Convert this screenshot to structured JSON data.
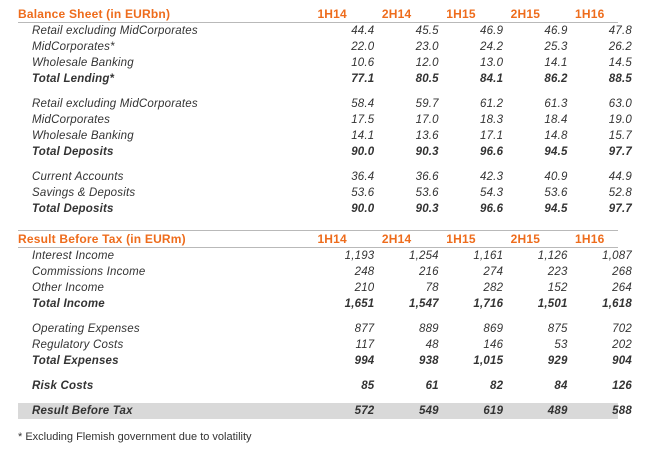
{
  "balance_sheet": {
    "title": "Balance Sheet (in EURbn)",
    "periods": [
      "1H14",
      "2H14",
      "1H15",
      "2H15",
      "1H16"
    ],
    "lending": [
      {
        "label": "Retail excluding MidCorporates",
        "values": [
          "44.4",
          "45.5",
          "46.9",
          "46.9",
          "47.8"
        ]
      },
      {
        "label": "MidCorporates*",
        "values": [
          "22.0",
          "23.0",
          "24.2",
          "25.3",
          "26.2"
        ]
      },
      {
        "label": "Wholesale Banking",
        "values": [
          "10.6",
          "12.0",
          "13.0",
          "14.1",
          "14.5"
        ]
      }
    ],
    "total_lending": {
      "label": "Total Lending*",
      "values": [
        "77.1",
        "80.5",
        "84.1",
        "86.2",
        "88.5"
      ]
    },
    "deposits_by_segment": [
      {
        "label": "Retail excluding MidCorporates",
        "values": [
          "58.4",
          "59.7",
          "61.2",
          "61.3",
          "63.0"
        ]
      },
      {
        "label": "MidCorporates",
        "values": [
          "17.5",
          "17.0",
          "18.3",
          "18.4",
          "19.0"
        ]
      },
      {
        "label": "Wholesale Banking",
        "values": [
          "14.1",
          "13.6",
          "17.1",
          "14.8",
          "15.7"
        ]
      }
    ],
    "total_deposits_segment": {
      "label": "Total Deposits",
      "values": [
        "90.0",
        "90.3",
        "96.6",
        "94.5",
        "97.7"
      ]
    },
    "deposits_by_type": [
      {
        "label": "Current Accounts",
        "values": [
          "36.4",
          "36.6",
          "42.3",
          "40.9",
          "44.9"
        ]
      },
      {
        "label": "Savings & Deposits",
        "values": [
          "53.6",
          "53.6",
          "54.3",
          "53.6",
          "52.8"
        ]
      }
    ],
    "total_deposits_type": {
      "label": "Total Deposits",
      "values": [
        "90.0",
        "90.3",
        "96.6",
        "94.5",
        "97.7"
      ]
    }
  },
  "result_before_tax": {
    "title": "Result Before Tax (in EURm)",
    "periods": [
      "1H14",
      "2H14",
      "1H15",
      "2H15",
      "1H16"
    ],
    "income": [
      {
        "label": "Interest Income",
        "values": [
          "1,193",
          "1,254",
          "1,161",
          "1,126",
          "1,087"
        ]
      },
      {
        "label": "Commissions Income",
        "values": [
          "248",
          "216",
          "274",
          "223",
          "268"
        ]
      },
      {
        "label": "Other Income",
        "values": [
          "210",
          "78",
          "282",
          "152",
          "264"
        ]
      }
    ],
    "total_income": {
      "label": "Total Income",
      "values": [
        "1,651",
        "1,547",
        "1,716",
        "1,501",
        "1,618"
      ]
    },
    "expenses": [
      {
        "label": "Operating Expenses",
        "values": [
          "877",
          "889",
          "869",
          "875",
          "702"
        ]
      },
      {
        "label": "Regulatory Costs",
        "values": [
          "117",
          "48",
          "146",
          "53",
          "202"
        ]
      }
    ],
    "total_expenses": {
      "label": "Total Expenses",
      "values": [
        "994",
        "938",
        "1,015",
        "929",
        "904"
      ]
    },
    "risk_costs": {
      "label": "Risk Costs",
      "values": [
        "85",
        "61",
        "82",
        "84",
        "126"
      ]
    },
    "result": {
      "label": "Result Before Tax",
      "values": [
        "572",
        "549",
        "619",
        "489",
        "588"
      ]
    }
  },
  "footnote": "* Excluding Flemish government due to volatility",
  "colors": {
    "header_accent": "#ee6c1c",
    "shade": "#d9d9d9",
    "rule": "#b9b9b9"
  }
}
